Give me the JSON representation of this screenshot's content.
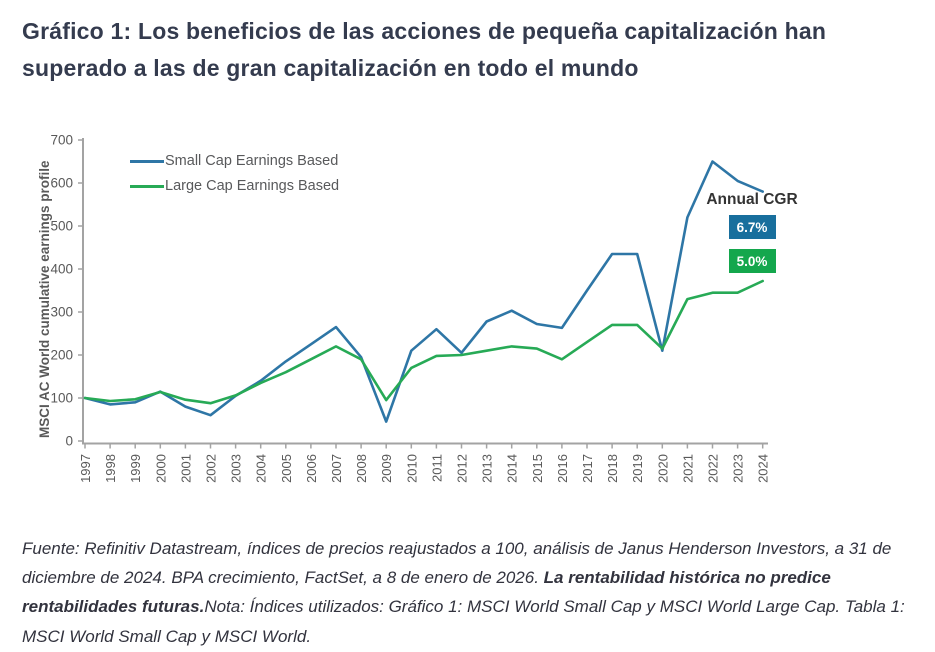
{
  "page": {
    "title": "Gráfico 1: Los beneficios de las acciones de pequeña capitalización han superado a las de gran capitalización en todo el mundo"
  },
  "chart_data": {
    "type": "line",
    "x": [
      1997,
      1998,
      1999,
      2000,
      2001,
      2002,
      2003,
      2004,
      2005,
      2006,
      2007,
      2008,
      2009,
      2010,
      2011,
      2012,
      2013,
      2014,
      2015,
      2016,
      2017,
      2018,
      2019,
      2020,
      2021,
      2022,
      2023,
      2024
    ],
    "series": [
      {
        "name": "Small Cap Earnings Based",
        "color": "#2e76a6",
        "values": [
          100,
          85,
          90,
          115,
          80,
          60,
          105,
          140,
          185,
          225,
          265,
          195,
          45,
          210,
          260,
          205,
          278,
          303,
          272,
          263,
          350,
          435,
          435,
          210,
          520,
          650,
          605,
          580
        ]
      },
      {
        "name": "Large Cap Earnings Based",
        "color": "#27aa56",
        "values": [
          100,
          93,
          97,
          114,
          96,
          88,
          106,
          135,
          160,
          190,
          220,
          190,
          95,
          170,
          198,
          200,
          210,
          220,
          215,
          190,
          230,
          270,
          270,
          215,
          330,
          345,
          345,
          372
        ]
      }
    ],
    "ylabel": "MSCI AC World cumulative earnings profile",
    "xlabel": "",
    "ylim": [
      0,
      700
    ],
    "yticks": [
      0,
      100,
      200,
      300,
      400,
      500,
      600,
      700
    ],
    "grid": false,
    "legend_position": "top-left-inside",
    "annotation": {
      "label": "Annual CGR",
      "values": [
        {
          "text": "6.7%",
          "color": "#186f9d"
        },
        {
          "text": "5.0%",
          "color": "#14a74d"
        }
      ]
    }
  },
  "footer": {
    "text_before_bold": "Fuente: Refinitiv Datastream, índices de precios reajustados a 100, análisis de Janus Henderson Investors, a 31 de diciembre de 2024. BPA crecimiento, FactSet, a 8 de enero de 2026. ",
    "bold_text": "La rentabilidad histórica no predice rentabilidades futuras.",
    "text_after_bold": "Nota: Índices utilizados: Gráfico 1: MSCI World Small Cap y MSCI World Large Cap. Tabla 1: MSCI World Small Cap y MSCI World."
  }
}
